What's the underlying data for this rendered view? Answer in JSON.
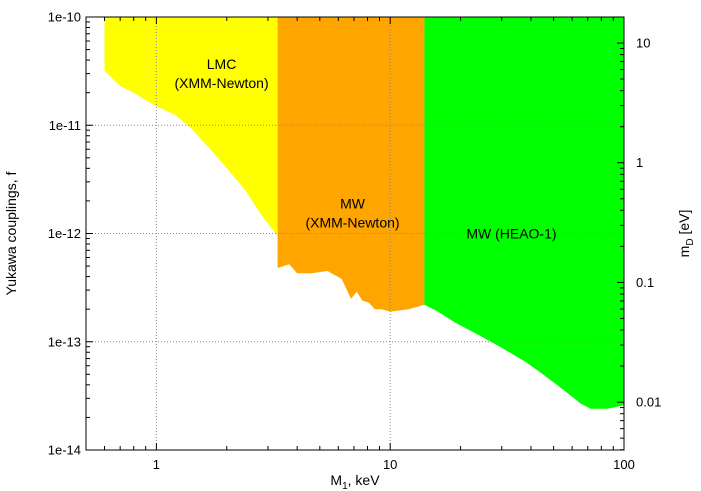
{
  "chart_data": {
    "type": "area",
    "xlabel_main": "M",
    "xlabel_sub": "1",
    "xlabel_rest": ", keV",
    "ylabel": "Yukawa couplings, f",
    "y2label_main": "m",
    "y2label_sub": "D",
    "y2label_rest": " [eV]",
    "x_scale": "log",
    "y_scale": "log",
    "y2_scale": "log",
    "xlim": [
      0.5,
      100
    ],
    "ylim": [
      1e-14,
      1e-10
    ],
    "y2lim": [
      0.00398,
      16.5
    ],
    "grid": true,
    "x_tick_values": [
      1,
      10,
      100
    ],
    "x_ticks": [
      "1",
      "10",
      "100"
    ],
    "y_tick_values": [
      1e-14,
      1e-13,
      1e-12,
      1e-11,
      1e-10
    ],
    "y_ticks": [
      "1e-14",
      "1e-13",
      "1e-12",
      "1e-11",
      "1e-10"
    ],
    "y2_tick_values": [
      0.01,
      0.1,
      1,
      10
    ],
    "y2_ticks": [
      "0.01",
      "0.1",
      "1",
      "10"
    ],
    "regions": [
      {
        "name_lines": [
          "LMC",
          "(XMM-Newton)"
        ],
        "label_at": [
          1.9,
          3e-11
        ],
        "color": "#ffff00",
        "boundary": [
          [
            0.6,
            3.2e-11
          ],
          [
            0.7,
            2.3e-11
          ],
          [
            0.8,
            2e-11
          ],
          [
            0.9,
            1.7e-11
          ],
          [
            1.0,
            1.5e-11
          ],
          [
            1.2,
            1.25e-11
          ],
          [
            1.4,
            9.5e-12
          ],
          [
            1.7,
            6e-12
          ],
          [
            2.0,
            4e-12
          ],
          [
            2.4,
            2.5e-12
          ],
          [
            2.8,
            1.5e-12
          ],
          [
            3.3,
            9.5e-13
          ]
        ]
      },
      {
        "name_lines": [
          "MW",
          "(XMM-Newton)"
        ],
        "label_at": [
          6.9,
          1.55e-12
        ],
        "color": "#ffa500",
        "boundary": [
          [
            3.3,
            4.8e-13
          ],
          [
            3.7,
            5.2e-13
          ],
          [
            4.0,
            4.3e-13
          ],
          [
            4.6,
            4.3e-13
          ],
          [
            5.4,
            4.5e-13
          ],
          [
            6.2,
            3.8e-13
          ],
          [
            6.8,
            2.5e-13
          ],
          [
            7.2,
            2.9e-13
          ],
          [
            7.6,
            2.4e-13
          ],
          [
            8.1,
            2.3e-13
          ],
          [
            8.6,
            2e-13
          ],
          [
            9.2,
            2e-13
          ],
          [
            10.0,
            1.9e-13
          ],
          [
            12.0,
            2e-13
          ],
          [
            14.0,
            2.2e-13
          ]
        ]
      },
      {
        "name_lines": [
          "MW (HEAO-1)"
        ],
        "label_at": [
          33,
          1e-12
        ],
        "color": "#00ff00",
        "boundary": [
          [
            14.0,
            2.2e-13
          ],
          [
            16.0,
            1.9e-13
          ],
          [
            19.0,
            1.5e-13
          ],
          [
            24.0,
            1.15e-13
          ],
          [
            30.0,
            8.8e-14
          ],
          [
            38.0,
            6.5e-14
          ],
          [
            45.0,
            5e-14
          ],
          [
            55.0,
            3.6e-14
          ],
          [
            65.0,
            2.7e-14
          ],
          [
            72.0,
            2.4e-14
          ],
          [
            85.0,
            2.4e-14
          ],
          [
            100.0,
            2.6e-14
          ]
        ]
      }
    ]
  }
}
